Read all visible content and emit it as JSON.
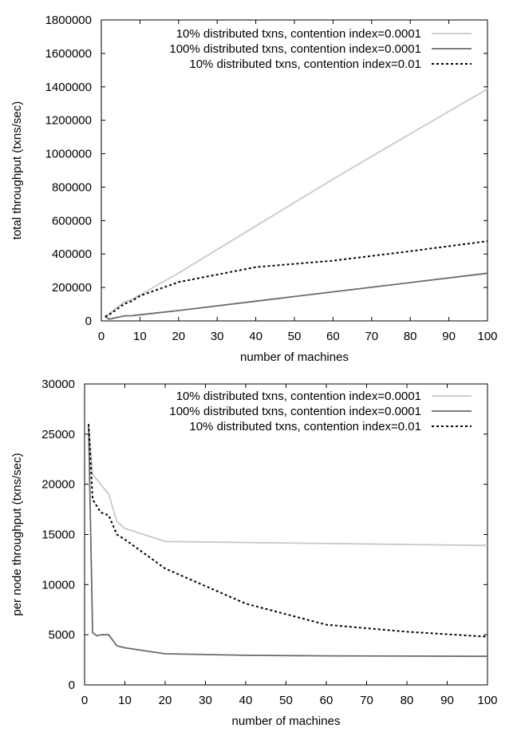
{
  "chart_data": [
    {
      "type": "line",
      "title": "",
      "xlabel": "number of machines",
      "ylabel": "total throughput (txns/sec)",
      "xlim": [
        0,
        100
      ],
      "ylim": [
        0,
        1800000
      ],
      "xticks": [
        0,
        10,
        20,
        30,
        40,
        50,
        60,
        70,
        80,
        90,
        100
      ],
      "yticks": [
        0,
        200000,
        400000,
        600000,
        800000,
        1000000,
        1200000,
        1400000,
        1600000,
        1800000
      ],
      "legend_position": "top-right",
      "grid": false,
      "series": [
        {
          "name": "10% distributed txns, contention index=0.0001",
          "color": "#c8c8c8",
          "dash": "solid",
          "x": [
            1,
            2,
            4,
            6,
            8,
            10,
            20,
            40,
            60,
            80,
            100
          ],
          "y": [
            26000,
            42000,
            80000,
            114000,
            130000,
            155000,
            286000,
            567000,
            848000,
            1119000,
            1387000
          ]
        },
        {
          "name": "100% distributed txns, contention index=0.0001",
          "color": "#6a6a6a",
          "dash": "solid",
          "x": [
            1,
            2,
            4,
            6,
            8,
            10,
            20,
            40,
            60,
            80,
            100
          ],
          "y": [
            26000,
            10000,
            20000,
            30000,
            31000,
            37000,
            62000,
            118000,
            174000,
            229000,
            285000
          ]
        },
        {
          "name": "10% distributed txns, contention index=0.01",
          "color": "#000000",
          "dash": "dotted",
          "x": [
            1,
            2,
            4,
            6,
            8,
            10,
            20,
            40,
            60,
            80,
            100
          ],
          "y": [
            26000,
            37000,
            69000,
            102000,
            120000,
            150000,
            232000,
            322000,
            360000,
            417000,
            477000
          ]
        }
      ]
    },
    {
      "type": "line",
      "title": "",
      "xlabel": "number of machines",
      "ylabel": "per node throughput (txns/sec)",
      "xlim": [
        0,
        100
      ],
      "ylim": [
        0,
        30000
      ],
      "xticks": [
        0,
        10,
        20,
        30,
        40,
        50,
        60,
        70,
        80,
        90,
        100
      ],
      "yticks": [
        0,
        5000,
        10000,
        15000,
        20000,
        25000,
        30000
      ],
      "legend_position": "top-right",
      "grid": false,
      "series": [
        {
          "name": "10% distributed txns, contention index=0.0001",
          "color": "#c8c8c8",
          "dash": "solid",
          "x": [
            1,
            2,
            4,
            6,
            8,
            10,
            20,
            40,
            60,
            80,
            100
          ],
          "y": [
            26000,
            21000,
            20000,
            19000,
            16300,
            15600,
            14300,
            14200,
            14100,
            14000,
            13900
          ]
        },
        {
          "name": "100% distributed txns, contention index=0.0001",
          "color": "#6a6a6a",
          "dash": "solid",
          "x": [
            1,
            2,
            3,
            4,
            6,
            8,
            10,
            20,
            40,
            60,
            80,
            100
          ],
          "y": [
            26000,
            5200,
            4900,
            5000,
            5000,
            3900,
            3700,
            3100,
            2950,
            2900,
            2870,
            2850
          ]
        },
        {
          "name": "10% distributed txns, contention index=0.01",
          "color": "#000000",
          "dash": "dotted",
          "x": [
            1,
            2,
            4,
            6,
            8,
            10,
            20,
            40,
            60,
            80,
            100
          ],
          "y": [
            26000,
            18500,
            17200,
            16900,
            15000,
            14500,
            11600,
            8100,
            6000,
            5300,
            4800
          ]
        }
      ]
    }
  ]
}
